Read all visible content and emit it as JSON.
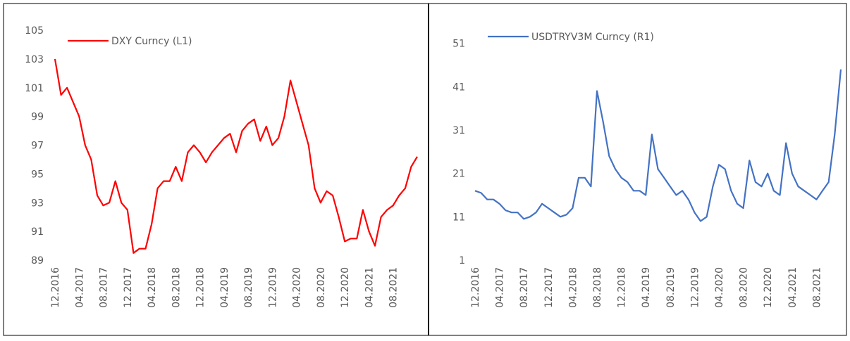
{
  "chart_data": [
    {
      "type": "line",
      "categories": [
        "12.2016",
        null,
        null,
        null,
        "04.2017",
        null,
        null,
        null,
        "08.2017",
        null,
        null,
        null,
        "12.2017",
        null,
        null,
        null,
        "04.2018",
        null,
        null,
        null,
        "08.2018",
        null,
        null,
        null,
        "12.2018",
        null,
        null,
        null,
        "04.2019",
        null,
        null,
        null,
        "08.2019",
        null,
        null,
        null,
        "12.2019",
        null,
        null,
        null,
        "04.2020",
        null,
        null,
        null,
        "08.2020",
        null,
        null,
        null,
        "12.2020",
        null,
        null,
        null,
        "04.2021",
        null,
        null,
        null,
        "08.2021",
        null,
        null,
        null,
        null
      ],
      "series": [
        {
          "name": "DXY Curncy  (L1)",
          "color": "#ff0000",
          "values": [
            103,
            100.5,
            101,
            100,
            99,
            97,
            96,
            93.5,
            92.8,
            93,
            94.5,
            93,
            92.5,
            89.5,
            89.8,
            89.8,
            91.5,
            94,
            94.5,
            94.5,
            95.5,
            94.5,
            96.5,
            97,
            96.5,
            95.8,
            96.5,
            97,
            97.5,
            97.8,
            96.5,
            98,
            98.5,
            98.8,
            97.3,
            98.3,
            97,
            97.5,
            99,
            101.5,
            100,
            98.5,
            97,
            94,
            93,
            93.8,
            93.5,
            92,
            90.3,
            90.5,
            90.5,
            92.5,
            91,
            90,
            92,
            92.5,
            92.8,
            93.5,
            94,
            95.5,
            96.2
          ]
        }
      ],
      "ylim": [
        89,
        105
      ],
      "yticks": [
        89,
        91,
        93,
        95,
        97,
        99,
        101,
        103,
        105
      ],
      "legend": "top-left"
    },
    {
      "type": "line",
      "categories": [
        "12.2016",
        null,
        null,
        null,
        "04.2017",
        null,
        null,
        null,
        "08.2017",
        null,
        null,
        null,
        "12.2017",
        null,
        null,
        null,
        "04.2018",
        null,
        null,
        null,
        "08.2018",
        null,
        null,
        null,
        "12.2018",
        null,
        null,
        null,
        "04.2019",
        null,
        null,
        null,
        "08.2019",
        null,
        null,
        null,
        "12.2019",
        null,
        null,
        null,
        "04.2020",
        null,
        null,
        null,
        "08.2020",
        null,
        null,
        null,
        "12.2020",
        null,
        null,
        null,
        "04.2021",
        null,
        null,
        null,
        "08.2021",
        null,
        null,
        null,
        null
      ],
      "series": [
        {
          "name": "USDTRYV3M Curncy  (R1)",
          "color": "#4472c4",
          "values": [
            17,
            16.5,
            15,
            15,
            14,
            12.5,
            12,
            12,
            10.5,
            11,
            12,
            14,
            13,
            12,
            11,
            11.5,
            13,
            20,
            20,
            18,
            40,
            33,
            25,
            22,
            20,
            19,
            17,
            17,
            16,
            30,
            22,
            20,
            18,
            16,
            17,
            15,
            12,
            10,
            11,
            18,
            23,
            22,
            17,
            14,
            13,
            24,
            19,
            18,
            21,
            17,
            16,
            28,
            21,
            18,
            17,
            16,
            15,
            17,
            19,
            30,
            45
          ]
        }
      ],
      "ylim": [
        1,
        55
      ],
      "yticks": [
        1,
        11,
        21,
        31,
        41,
        51
      ],
      "legend": "top-left"
    }
  ]
}
